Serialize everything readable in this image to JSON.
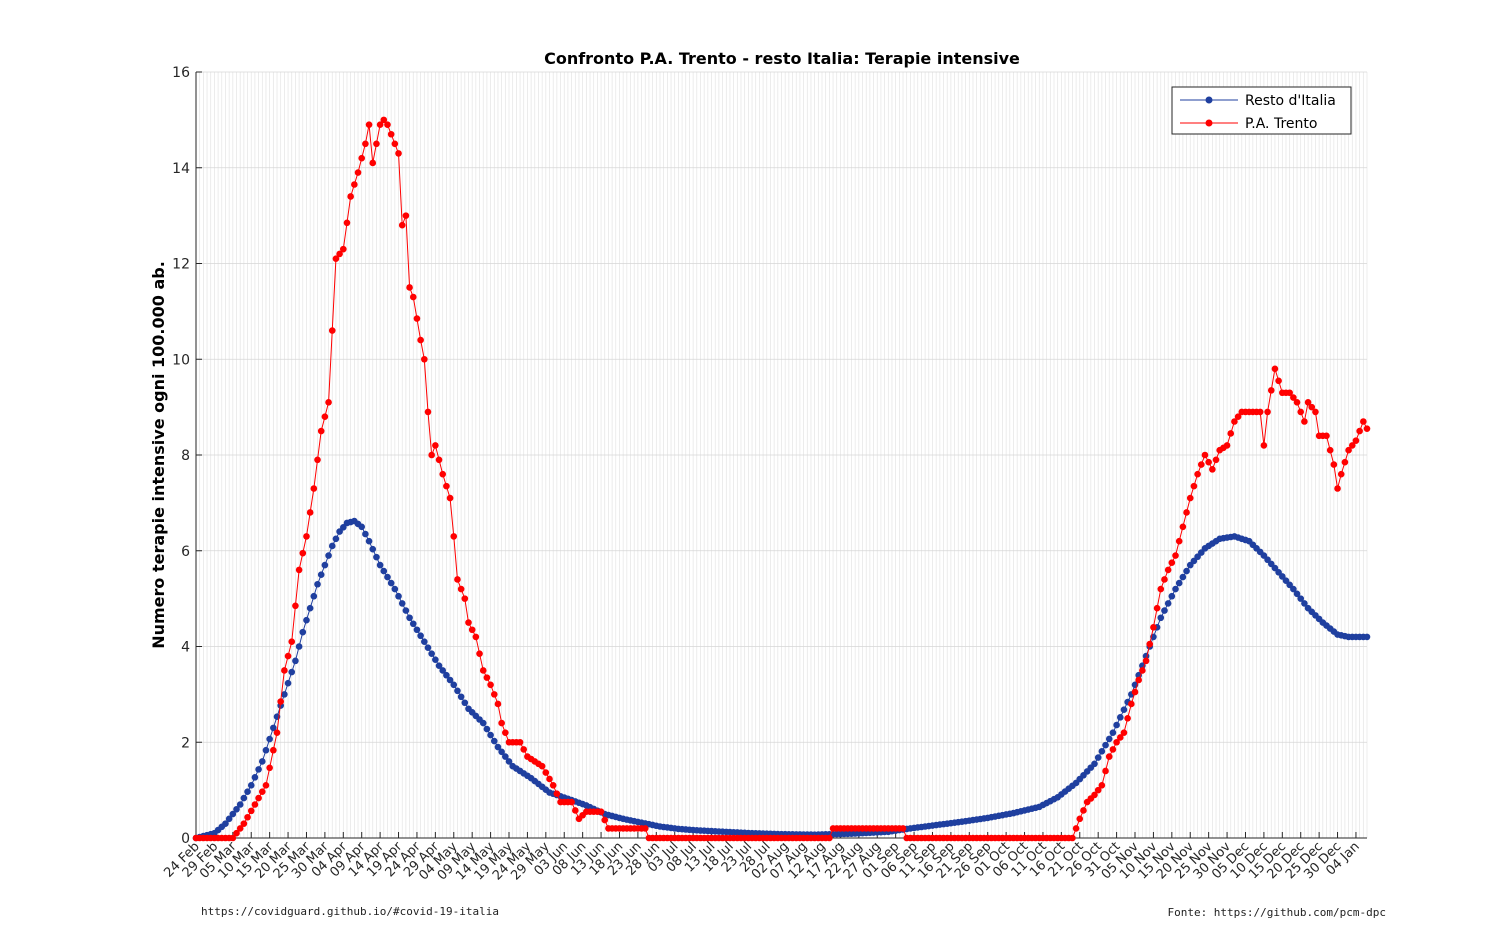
{
  "chart_data": {
    "type": "line",
    "title": "Confronto P.A. Trento - resto Italia: Terapie intensive",
    "xlabel": "",
    "ylabel": "Numero terapie intensive ogni 100.000 ab.",
    "ylim": [
      0,
      16
    ],
    "yticks": [
      0,
      2,
      4,
      6,
      8,
      10,
      12,
      14,
      16
    ],
    "x_range": [
      "2020-02-24",
      "2021-01-07"
    ],
    "x_tick_labels": [
      "24 Feb",
      "29 Feb",
      "05 Mar",
      "10 Mar",
      "15 Mar",
      "20 Mar",
      "25 Mar",
      "30 Mar",
      "04 Apr",
      "09 Apr",
      "14 Apr",
      "19 Apr",
      "24 Apr",
      "29 Apr",
      "04 May",
      "09 May",
      "14 May",
      "19 May",
      "24 May",
      "29 May",
      "03 Jun",
      "08 Jun",
      "13 Jun",
      "18 Jun",
      "23 Jun",
      "28 Jun",
      "03 Jul",
      "08 Jul",
      "13 Jul",
      "18 Jul",
      "23 Jul",
      "28 Jul",
      "02 Aug",
      "07 Aug",
      "12 Aug",
      "17 Aug",
      "22 Aug",
      "27 Aug",
      "01 Sep",
      "06 Sep",
      "11 Sep",
      "16 Sep",
      "21 Sep",
      "26 Sep",
      "01 Oct",
      "06 Oct",
      "11 Oct",
      "16 Oct",
      "21 Oct",
      "26 Oct",
      "31 Oct",
      "05 Nov",
      "10 Nov",
      "15 Nov",
      "20 Nov",
      "25 Nov",
      "30 Nov",
      "05 Dec",
      "10 Dec",
      "15 Dec",
      "20 Dec",
      "25 Dec",
      "30 Dec",
      "04 Jan"
    ],
    "grid": true,
    "legend_position": "top-right",
    "series": [
      {
        "name": "Resto d'Italia",
        "color": "#1f3f9f",
        "points": [
          [
            "2020-02-24",
            0.0
          ],
          [
            "2020-02-29",
            0.1
          ],
          [
            "2020-03-03",
            0.3
          ],
          [
            "2020-03-07",
            0.7
          ],
          [
            "2020-03-10",
            1.1
          ],
          [
            "2020-03-13",
            1.6
          ],
          [
            "2020-03-16",
            2.3
          ],
          [
            "2020-03-19",
            3.0
          ],
          [
            "2020-03-22",
            3.7
          ],
          [
            "2020-03-24",
            4.3
          ],
          [
            "2020-03-26",
            4.8
          ],
          [
            "2020-03-28",
            5.3
          ],
          [
            "2020-03-30",
            5.7
          ],
          [
            "2020-04-01",
            6.1
          ],
          [
            "2020-04-03",
            6.4
          ],
          [
            "2020-04-05",
            6.58
          ],
          [
            "2020-04-07",
            6.62
          ],
          [
            "2020-04-09",
            6.5
          ],
          [
            "2020-04-11",
            6.2
          ],
          [
            "2020-04-14",
            5.7
          ],
          [
            "2020-04-18",
            5.2
          ],
          [
            "2020-04-22",
            4.6
          ],
          [
            "2020-04-26",
            4.1
          ],
          [
            "2020-04-30",
            3.6
          ],
          [
            "2020-05-04",
            3.2
          ],
          [
            "2020-05-08",
            2.7
          ],
          [
            "2020-05-12",
            2.4
          ],
          [
            "2020-05-16",
            1.9
          ],
          [
            "2020-05-20",
            1.5
          ],
          [
            "2020-05-25",
            1.25
          ],
          [
            "2020-05-30",
            0.95
          ],
          [
            "2020-06-04",
            0.82
          ],
          [
            "2020-06-09",
            0.68
          ],
          [
            "2020-06-14",
            0.5
          ],
          [
            "2020-06-19",
            0.4
          ],
          [
            "2020-06-24",
            0.32
          ],
          [
            "2020-06-29",
            0.24
          ],
          [
            "2020-07-04",
            0.19
          ],
          [
            "2020-07-09",
            0.16
          ],
          [
            "2020-07-14",
            0.14
          ],
          [
            "2020-07-19",
            0.12
          ],
          [
            "2020-07-24",
            0.1
          ],
          [
            "2020-08-01",
            0.08
          ],
          [
            "2020-08-10",
            0.07
          ],
          [
            "2020-08-20",
            0.09
          ],
          [
            "2020-08-30",
            0.13
          ],
          [
            "2020-09-05",
            0.2
          ],
          [
            "2020-09-12",
            0.27
          ],
          [
            "2020-09-19",
            0.34
          ],
          [
            "2020-09-26",
            0.42
          ],
          [
            "2020-10-03",
            0.52
          ],
          [
            "2020-10-10",
            0.65
          ],
          [
            "2020-10-15",
            0.85
          ],
          [
            "2020-10-20",
            1.15
          ],
          [
            "2020-10-25",
            1.55
          ],
          [
            "2020-10-30",
            2.2
          ],
          [
            "2020-11-04",
            3.0
          ],
          [
            "2020-11-08",
            3.8
          ],
          [
            "2020-11-12",
            4.6
          ],
          [
            "2020-11-16",
            5.2
          ],
          [
            "2020-11-20",
            5.7
          ],
          [
            "2020-11-24",
            6.05
          ],
          [
            "2020-11-28",
            6.25
          ],
          [
            "2020-12-02",
            6.3
          ],
          [
            "2020-12-06",
            6.2
          ],
          [
            "2020-12-10",
            5.9
          ],
          [
            "2020-12-14",
            5.55
          ],
          [
            "2020-12-18",
            5.2
          ],
          [
            "2020-12-22",
            4.8
          ],
          [
            "2020-12-26",
            4.5
          ],
          [
            "2020-12-30",
            4.25
          ],
          [
            "2021-01-02",
            4.2
          ],
          [
            "2021-01-05",
            4.2
          ],
          [
            "2021-01-07",
            4.2
          ]
        ]
      },
      {
        "name": "P.A. Trento",
        "color": "#ff0000",
        "points": [
          [
            "2020-02-24",
            0.0
          ],
          [
            "2020-03-05",
            0.0
          ],
          [
            "2020-03-08",
            0.3
          ],
          [
            "2020-03-11",
            0.7
          ],
          [
            "2020-03-14",
            1.1
          ],
          [
            "2020-03-17",
            2.2
          ],
          [
            "2020-03-19",
            3.5
          ],
          [
            "2020-03-21",
            4.1
          ],
          [
            "2020-03-23",
            5.6
          ],
          [
            "2020-03-25",
            6.3
          ],
          [
            "2020-03-27",
            7.3
          ],
          [
            "2020-03-29",
            8.5
          ],
          [
            "2020-03-31",
            9.1
          ],
          [
            "2020-04-02",
            12.1
          ],
          [
            "2020-04-04",
            12.3
          ],
          [
            "2020-04-06",
            13.4
          ],
          [
            "2020-04-08",
            13.9
          ],
          [
            "2020-04-10",
            14.5
          ],
          [
            "2020-04-11",
            14.9
          ],
          [
            "2020-04-12",
            14.1
          ],
          [
            "2020-04-13",
            14.5
          ],
          [
            "2020-04-14",
            14.9
          ],
          [
            "2020-04-15",
            15.0
          ],
          [
            "2020-04-16",
            14.9
          ],
          [
            "2020-04-17",
            14.7
          ],
          [
            "2020-04-19",
            14.3
          ],
          [
            "2020-04-20",
            12.8
          ],
          [
            "2020-04-21",
            13.0
          ],
          [
            "2020-04-22",
            11.5
          ],
          [
            "2020-04-23",
            11.3
          ],
          [
            "2020-04-25",
            10.4
          ],
          [
            "2020-04-26",
            10.0
          ],
          [
            "2020-04-27",
            8.9
          ],
          [
            "2020-04-28",
            8.0
          ],
          [
            "2020-04-29",
            8.2
          ],
          [
            "2020-05-01",
            7.6
          ],
          [
            "2020-05-03",
            7.1
          ],
          [
            "2020-05-04",
            6.3
          ],
          [
            "2020-05-05",
            5.4
          ],
          [
            "2020-05-07",
            5.0
          ],
          [
            "2020-05-08",
            4.5
          ],
          [
            "2020-05-10",
            4.2
          ],
          [
            "2020-05-12",
            3.5
          ],
          [
            "2020-05-14",
            3.2
          ],
          [
            "2020-05-16",
            2.8
          ],
          [
            "2020-05-17",
            2.4
          ],
          [
            "2020-05-19",
            2.0
          ],
          [
            "2020-05-22",
            2.0
          ],
          [
            "2020-05-24",
            1.7
          ],
          [
            "2020-05-28",
            1.5
          ],
          [
            "2020-05-31",
            1.1
          ],
          [
            "2020-06-02",
            0.75
          ],
          [
            "2020-06-05",
            0.75
          ],
          [
            "2020-06-07",
            0.4
          ],
          [
            "2020-06-09",
            0.55
          ],
          [
            "2020-06-13",
            0.55
          ],
          [
            "2020-06-15",
            0.2
          ],
          [
            "2020-06-25",
            0.2
          ],
          [
            "2020-06-26",
            0.0
          ],
          [
            "2020-08-14",
            0.0
          ],
          [
            "2020-08-15",
            0.2
          ],
          [
            "2020-09-03",
            0.2
          ],
          [
            "2020-09-04",
            0.0
          ],
          [
            "2020-10-19",
            0.0
          ],
          [
            "2020-10-20",
            0.2
          ],
          [
            "2020-10-21",
            0.4
          ],
          [
            "2020-10-23",
            0.75
          ],
          [
            "2020-10-25",
            0.9
          ],
          [
            "2020-10-27",
            1.1
          ],
          [
            "2020-10-29",
            1.7
          ],
          [
            "2020-10-31",
            2.0
          ],
          [
            "2020-11-02",
            2.2
          ],
          [
            "2020-11-04",
            2.8
          ],
          [
            "2020-11-06",
            3.3
          ],
          [
            "2020-11-08",
            3.7
          ],
          [
            "2020-11-10",
            4.4
          ],
          [
            "2020-11-12",
            5.2
          ],
          [
            "2020-11-14",
            5.6
          ],
          [
            "2020-11-16",
            5.9
          ],
          [
            "2020-11-18",
            6.5
          ],
          [
            "2020-11-20",
            7.1
          ],
          [
            "2020-11-22",
            7.6
          ],
          [
            "2020-11-24",
            8.0
          ],
          [
            "2020-11-26",
            7.7
          ],
          [
            "2020-11-28",
            8.1
          ],
          [
            "2020-11-30",
            8.2
          ],
          [
            "2020-12-02",
            8.7
          ],
          [
            "2020-12-04",
            8.9
          ],
          [
            "2020-12-06",
            8.9
          ],
          [
            "2020-12-09",
            8.9
          ],
          [
            "2020-12-10",
            8.2
          ],
          [
            "2020-12-11",
            8.9
          ],
          [
            "2020-12-13",
            9.8
          ],
          [
            "2020-12-15",
            9.3
          ],
          [
            "2020-12-17",
            9.3
          ],
          [
            "2020-12-19",
            9.1
          ],
          [
            "2020-12-21",
            8.7
          ],
          [
            "2020-12-22",
            9.1
          ],
          [
            "2020-12-24",
            8.9
          ],
          [
            "2020-12-25",
            8.4
          ],
          [
            "2020-12-27",
            8.4
          ],
          [
            "2020-12-29",
            7.8
          ],
          [
            "2020-12-30",
            7.3
          ],
          [
            "2020-12-31",
            7.6
          ],
          [
            "2021-01-02",
            8.1
          ],
          [
            "2021-01-04",
            8.3
          ],
          [
            "2021-01-06",
            8.7
          ],
          [
            "2021-01-07",
            8.55
          ]
        ]
      }
    ]
  },
  "footer": {
    "left": "https://covidguard.github.io/#covid-19-italia",
    "right": "Fonte: https://github.com/pcm-dpc"
  }
}
